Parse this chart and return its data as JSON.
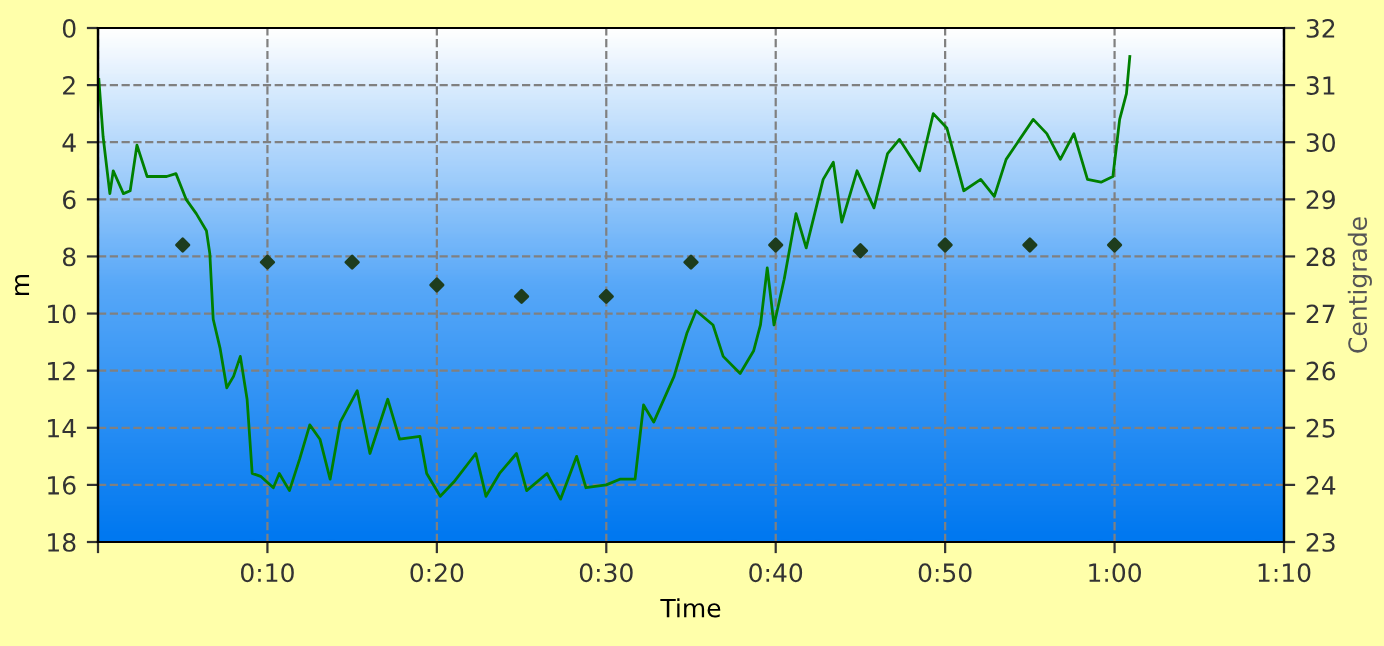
{
  "chart_data": {
    "type": "line",
    "xlabel": "Time",
    "ylabel": "m",
    "y2label": "Centigrade",
    "xlim": [
      0,
      70
    ],
    "xticks": [
      {
        "value": 0,
        "label": null
      },
      {
        "value": 10,
        "label": "0:10"
      },
      {
        "value": 20,
        "label": "0:20"
      },
      {
        "value": 30,
        "label": "0:30"
      },
      {
        "value": 40,
        "label": "0:40"
      },
      {
        "value": 50,
        "label": "0:50"
      },
      {
        "value": 60,
        "label": "1:00"
      },
      {
        "value": 70,
        "label": "1:10"
      }
    ],
    "ylim": [
      18,
      0
    ],
    "yticks": [
      0,
      2,
      4,
      6,
      8,
      10,
      12,
      14,
      16,
      18
    ],
    "y2lim": [
      23,
      32
    ],
    "y2ticks": [
      23,
      24,
      25,
      26,
      27,
      28,
      29,
      30,
      31,
      32
    ],
    "grid": true,
    "legend": false,
    "series": [
      {
        "color": "#008000",
        "marker": "none",
        "line_style": "solid",
        "x": [
          0.05,
          0.3,
          0.7,
          0.9,
          1.5,
          1.9,
          2.3,
          2.9,
          4.05,
          4.6,
          5.2,
          5.8,
          6.4,
          6.6,
          6.8,
          7.2,
          7.6,
          8.0,
          8.4,
          8.8,
          9.1,
          9.6,
          10.35,
          10.7,
          11.3,
          11.9,
          12.5,
          13.1,
          13.7,
          14.3,
          15.3,
          16.05,
          17.1,
          17.8,
          19.0,
          19.4,
          20.2,
          21.0,
          22.3,
          22.9,
          23.7,
          24.7,
          25.3,
          26.5,
          27.3,
          28.25,
          28.8,
          30.0,
          30.8,
          31.7,
          32.2,
          32.8,
          34.0,
          34.75,
          35.3,
          36.3,
          36.9,
          37.9,
          38.7,
          39.1,
          39.5,
          39.9,
          40.5,
          41.2,
          41.8,
          42.8,
          43.4,
          43.9,
          44.8,
          45.8,
          46.6,
          47.3,
          48.5,
          49.3,
          50.1,
          51.1,
          52.1,
          52.9,
          53.6,
          55.2,
          56.0,
          56.8,
          57.6,
          58.4,
          59.2,
          59.9,
          60.3,
          60.7,
          60.9
        ],
        "values": [
          1.8,
          3.8,
          5.8,
          5.0,
          5.8,
          5.7,
          4.1,
          5.2,
          5.2,
          5.1,
          6.0,
          6.5,
          7.1,
          7.9,
          10.2,
          11.2,
          12.6,
          12.2,
          11.5,
          13.0,
          15.6,
          15.7,
          16.1,
          15.6,
          16.2,
          15.1,
          13.9,
          14.4,
          15.8,
          13.8,
          12.7,
          14.9,
          13.0,
          14.4,
          14.3,
          15.6,
          16.4,
          15.9,
          14.9,
          16.4,
          15.6,
          14.9,
          16.2,
          15.6,
          16.5,
          15.0,
          16.1,
          16.0,
          15.8,
          15.8,
          13.2,
          13.8,
          12.2,
          10.7,
          9.9,
          10.4,
          11.5,
          12.1,
          11.3,
          10.4,
          8.4,
          10.4,
          8.8,
          6.5,
          7.7,
          5.3,
          4.7,
          6.8,
          5.0,
          6.3,
          4.4,
          3.9,
          5.0,
          3.0,
          3.5,
          5.7,
          5.3,
          5.9,
          4.6,
          3.2,
          3.7,
          4.6,
          3.7,
          5.3,
          5.4,
          5.2,
          3.2,
          2.3,
          1.0
        ]
      },
      {
        "type": "scatter",
        "axis": "y2",
        "color": "#1e3d1e",
        "marker": "diamond",
        "x": [
          5,
          10,
          15,
          20,
          25,
          30,
          35,
          40,
          45,
          50,
          55,
          60
        ],
        "values": [
          28.2,
          27.9,
          27.9,
          27.5,
          27.3,
          27.3,
          27.9,
          28.2,
          28.1,
          28.2,
          28.2,
          28.2
        ]
      }
    ]
  }
}
